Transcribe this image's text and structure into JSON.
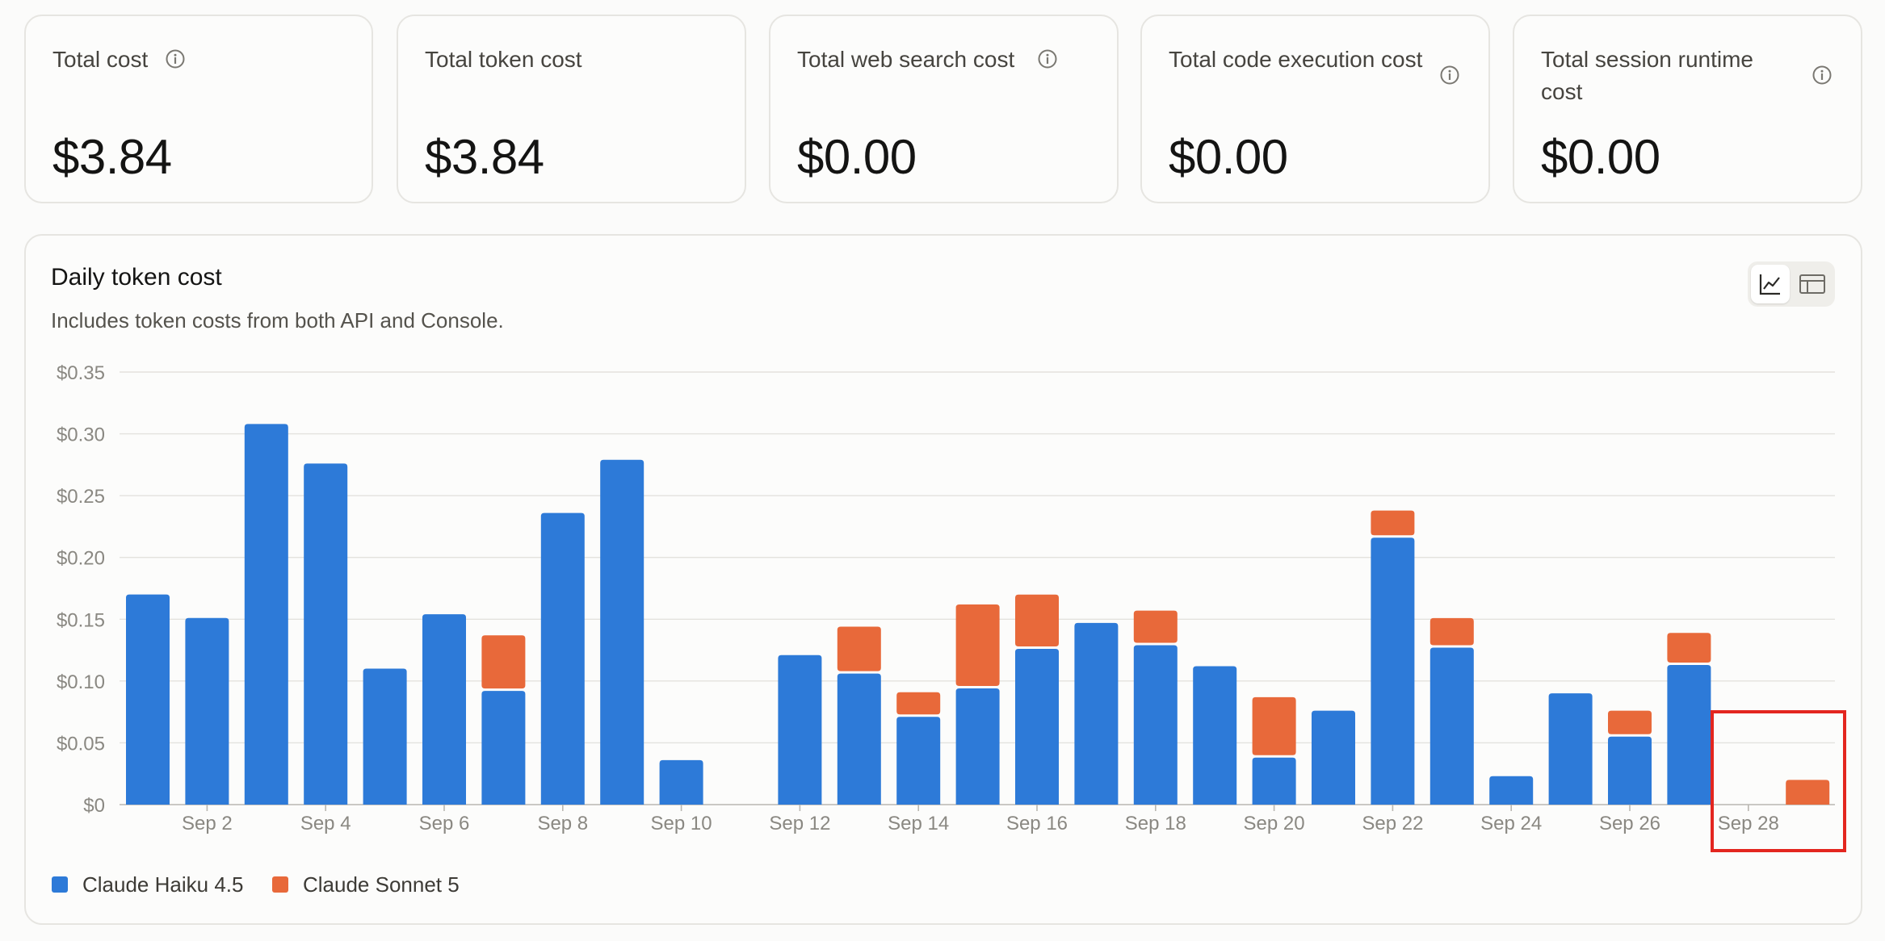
{
  "summary_cards": [
    {
      "title": "Total cost",
      "value": "$3.84",
      "info_icon": true
    },
    {
      "title": "Total token cost",
      "value": "$3.84",
      "info_icon": false
    },
    {
      "title": "Total web search cost",
      "value": "$0.00",
      "info_icon": true
    },
    {
      "title": "Total code execution cost",
      "value": "$0.00",
      "info_icon": true
    },
    {
      "title": "Total session runtime cost",
      "value": "$0.00",
      "info_icon": true
    }
  ],
  "icons": {
    "info": "info-icon",
    "chart_view": "line-chart-icon",
    "table_view": "table-icon"
  },
  "chart_data": {
    "type": "bar",
    "stacked": true,
    "title": "Daily token cost",
    "subtitle": "Includes token costs from both API and Console.",
    "categories": [
      "Sep 1",
      "Sep 2",
      "Sep 3",
      "Sep 4",
      "Sep 5",
      "Sep 6",
      "Sep 7",
      "Sep 8",
      "Sep 9",
      "Sep 10",
      "Sep 11",
      "Sep 12",
      "Sep 13",
      "Sep 14",
      "Sep 15",
      "Sep 16",
      "Sep 17",
      "Sep 18",
      "Sep 19",
      "Sep 20",
      "Sep 21",
      "Sep 22",
      "Sep 23",
      "Sep 24",
      "Sep 25",
      "Sep 26",
      "Sep 27",
      "Sep 28",
      "Sep 29"
    ],
    "x_tick_labels": [
      "Sep 2",
      "Sep 4",
      "Sep 6",
      "Sep 8",
      "Sep 10",
      "Sep 12",
      "Sep 14",
      "Sep 16",
      "Sep 18",
      "Sep 20",
      "Sep 22",
      "Sep 24",
      "Sep 26",
      "Sep 28"
    ],
    "y_tick_labels": [
      "$0",
      "$0.05",
      "$0.10",
      "$0.15",
      "$0.20",
      "$0.25",
      "$0.30",
      "$0.35"
    ],
    "ylim": [
      0,
      0.35
    ],
    "grid": true,
    "legend_position": "bottom-left",
    "series": [
      {
        "name": "Claude Haiku 4.5",
        "color": "#2d7ad8",
        "values": [
          0.17,
          0.151,
          0.308,
          0.276,
          0.11,
          0.154,
          0.092,
          0.236,
          0.279,
          0.036,
          0,
          0.121,
          0.106,
          0.071,
          0.094,
          0.126,
          0.147,
          0.129,
          0.112,
          0.038,
          0.076,
          0.216,
          0.127,
          0.023,
          0.09,
          0.055,
          0.113,
          0,
          0
        ]
      },
      {
        "name": "Claude Sonnet 5",
        "color": "#e8693a",
        "values": [
          0,
          0,
          0,
          0,
          0,
          0,
          0.043,
          0,
          0,
          0,
          0,
          0,
          0.036,
          0.018,
          0.066,
          0.042,
          0,
          0.026,
          0,
          0.047,
          0,
          0.02,
          0.022,
          0,
          0,
          0.019,
          0.024,
          0,
          0.02
        ]
      }
    ]
  }
}
